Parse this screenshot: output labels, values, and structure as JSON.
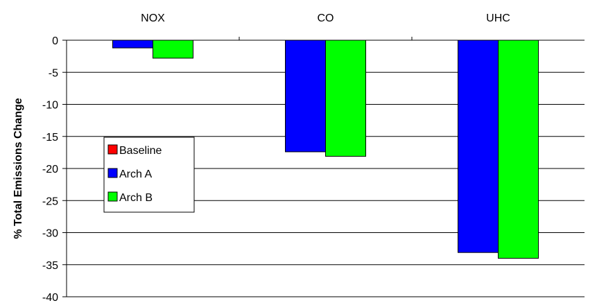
{
  "chart_data": {
    "type": "bar",
    "title": "",
    "xlabel": "",
    "ylabel": "% Total Emissions Change",
    "categories": [
      "NOX",
      "CO",
      "UHC"
    ],
    "series": [
      {
        "name": "Baseline",
        "color": "#ff0000",
        "values": [
          0,
          0,
          0
        ]
      },
      {
        "name": "Arch A",
        "color": "#0000ff",
        "values": [
          -1.2,
          -17.4,
          -33.1
        ]
      },
      {
        "name": "Arch B",
        "color": "#00ff00",
        "values": [
          -2.8,
          -18.1,
          -34.0
        ]
      }
    ],
    "ylim": [
      -40,
      0
    ],
    "yticks": [
      0,
      -5,
      -10,
      -15,
      -20,
      -25,
      -30,
      -35,
      -40
    ],
    "ytick_labels": [
      "0",
      "-5",
      "-10",
      "-15",
      "-20",
      "-25",
      "-30",
      "-35",
      "-40"
    ],
    "grid": true,
    "legend_position": "left-middle",
    "category_label_position": "top"
  }
}
